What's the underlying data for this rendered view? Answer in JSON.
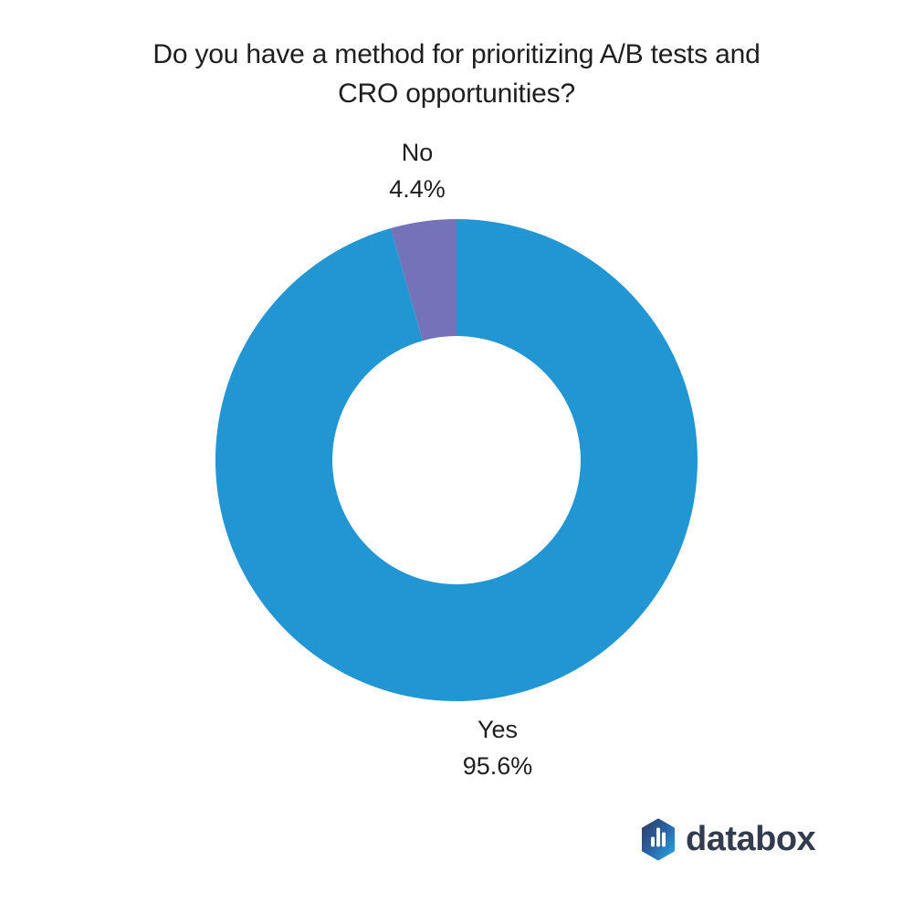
{
  "page": {
    "background": "#ffffff"
  },
  "chart_data": {
    "type": "pie",
    "subtype": "donut",
    "title": "Do you have a method for prioritizing A/B tests and CRO opportunities?",
    "title_lines": [
      "Do you have a method for prioritizing A/B tests and",
      "CRO opportunities?"
    ],
    "slices": [
      {
        "label": "Yes",
        "value": 95.6,
        "display": "95.6%",
        "color": "#2196d3"
      },
      {
        "label": "No",
        "value": 4.4,
        "display": "4.4%",
        "color": "#7472b8"
      }
    ],
    "start_angle_deg": 0,
    "direction": "clockwise",
    "inner_radius_ratio": 0.515,
    "legend": "none",
    "labels_position": "outside",
    "background": "#ffffff"
  },
  "branding": {
    "logo_text": "databox",
    "icon": "databox-hexagon-bars-icon",
    "text_color": "#333c4f",
    "icon_gradient": [
      "#2f3a62",
      "#27a5e0"
    ],
    "icon_bar_color": "#ffffff"
  }
}
